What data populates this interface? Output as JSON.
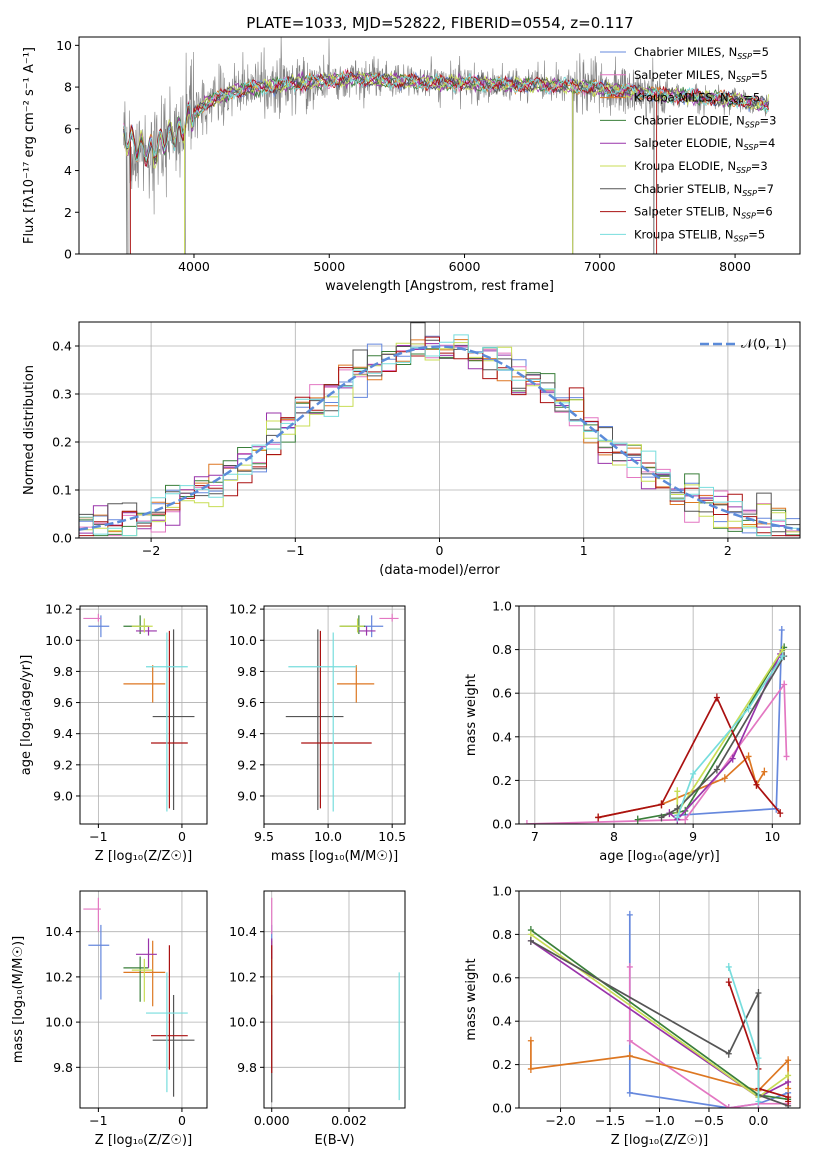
{
  "colors": {
    "chabrier_miles": "#6688dd",
    "salpeter_miles": "#e377c2",
    "kroupa_miles": "#dd7722",
    "chabrier_elodie": "#3a7f3a",
    "salpeter_elodie": "#9933aa",
    "kroupa_elodie": "#c8dd55",
    "chabrier_stelib": "#555555",
    "salpeter_stelib": "#aa1111",
    "kroupa_stelib": "#77dddd",
    "gauss": "#5b8bd9",
    "grid": "#b0b0b0",
    "data_spectrum": "#808080"
  },
  "chart_data": [
    {
      "type": "line",
      "title": "PLATE=1033, MJD=52822, FIBERID=0554, z=0.117",
      "xlabel": "wavelength [Angstrom, rest frame]",
      "ylabel": "Flux [fλ10⁻¹⁷ erg cm⁻² s⁻¹ A⁻¹]",
      "xlim": [
        3150,
        8480
      ],
      "ylim": [
        0,
        10.4
      ],
      "xticks": [
        "4000",
        "5000",
        "6000",
        "7000",
        "8000"
      ],
      "yticks": [
        "0",
        "2",
        "4",
        "6",
        "8",
        "10"
      ],
      "grid": false,
      "legend_position": "upper-right",
      "legend": [
        {
          "label": "Chabrier MILES, N",
          "sub": "SSP",
          "value": "=5"
        },
        {
          "label": "Salpeter MILES, N",
          "sub": "SSP",
          "value": "=5"
        },
        {
          "label": "Kroupa MILES, N",
          "sub": "SSP",
          "value": "=5"
        },
        {
          "label": "Chabrier ELODIE, N",
          "sub": "SSP",
          "value": "=3"
        },
        {
          "label": "Salpeter ELODIE, N",
          "sub": "SSP",
          "value": "=4"
        },
        {
          "label": "Kroupa ELODIE, N",
          "sub": "SSP",
          "value": "=3"
        },
        {
          "label": "Chabrier STELIB, N",
          "sub": "SSP",
          "value": "=7"
        },
        {
          "label": "Salpeter STELIB, N",
          "sub": "SSP",
          "value": "=6"
        },
        {
          "label": "Kroupa STELIB, N",
          "sub": "SSP",
          "value": "=5"
        }
      ],
      "continuum_points": [
        [
          3480,
          5.6
        ],
        [
          3600,
          5.1
        ],
        [
          3700,
          4.9
        ],
        [
          3800,
          5.6
        ],
        [
          3900,
          5.9
        ],
        [
          3960,
          6.5
        ],
        [
          4100,
          7.3
        ],
        [
          4300,
          7.8
        ],
        [
          4500,
          8.0
        ],
        [
          4800,
          8.2
        ],
        [
          5000,
          8.3
        ],
        [
          5200,
          8.4
        ],
        [
          5500,
          8.3
        ],
        [
          5800,
          8.2
        ],
        [
          6000,
          8.2
        ],
        [
          6300,
          8.1
        ],
        [
          6600,
          8.1
        ],
        [
          6900,
          8.0
        ],
        [
          7200,
          7.8
        ],
        [
          7500,
          7.6
        ],
        [
          7800,
          7.5
        ],
        [
          8000,
          7.4
        ],
        [
          8250,
          7.1
        ]
      ]
    },
    {
      "type": "line",
      "xlabel": "(data-model)/error",
      "ylabel": "Normed distribution",
      "xlim": [
        -2.5,
        2.5
      ],
      "ylim": [
        0,
        0.45
      ],
      "xticks": [
        "−2",
        "−1",
        "0",
        "1",
        "2"
      ],
      "yticks": [
        "0.0",
        "0.1",
        "0.2",
        "0.3",
        "0.4"
      ],
      "grid": true,
      "legend_position": "upper-right",
      "legend": [
        "𝒩(0, 1)"
      ]
    },
    {
      "type": "scatter",
      "xlabel": "Z [log₁₀(Z/Z☉)]",
      "ylabel": "age  [log₁₀(age/yr)]",
      "xlim": [
        -1.22,
        0.3
      ],
      "ylim": [
        8.82,
        10.22
      ],
      "xticks": [
        "−1",
        "0"
      ],
      "yticks": [
        "9.0",
        "9.2",
        "9.4",
        "9.6",
        "9.8",
        "10.0",
        "10.2"
      ],
      "grid": true
    },
    {
      "type": "scatter",
      "xlabel": "mass [log₁₀(M/M☉)]",
      "ylabel": "",
      "xlim": [
        9.5,
        10.6
      ],
      "ylim": [
        8.82,
        10.22
      ],
      "xticks": [
        "9.5",
        "10.0",
        "10.5"
      ],
      "yticks": [
        "9.0",
        "9.2",
        "9.4",
        "9.6",
        "9.8",
        "10.0",
        "10.2"
      ],
      "grid": true
    },
    {
      "type": "line",
      "xlabel": "age  [log₁₀(age/yr)]",
      "ylabel": "mass weight",
      "xlim": [
        6.8,
        10.35
      ],
      "ylim": [
        0,
        1.0
      ],
      "xticks": [
        "7",
        "8",
        "9",
        "10"
      ],
      "yticks": [
        "0.0",
        "0.2",
        "0.4",
        "0.6",
        "0.8",
        "1.0"
      ],
      "grid": true
    },
    {
      "type": "scatter",
      "xlabel": "Z [log₁₀(Z/Z☉)]",
      "ylabel": "mass [log₁₀(M/M☉)]",
      "xlim": [
        -1.22,
        0.3
      ],
      "ylim": [
        9.62,
        10.58
      ],
      "xticks": [
        "−1",
        "0"
      ],
      "yticks": [
        "9.8",
        "10.0",
        "10.2",
        "10.4"
      ],
      "grid": true
    },
    {
      "type": "scatter",
      "xlabel": "E(B-V)",
      "ylabel": "",
      "xlim": [
        -0.0002,
        0.00345
      ],
      "ylim": [
        9.62,
        10.58
      ],
      "xticks": [
        "0.000",
        "0.002"
      ],
      "yticks": [
        "9.8",
        "10.0",
        "10.2",
        "10.4"
      ],
      "grid": true
    },
    {
      "type": "line",
      "xlabel": "Z [log₁₀(Z/Z☉)]",
      "ylabel": "mass weight",
      "xlim": [
        -2.42,
        0.42
      ],
      "ylim": [
        0,
        1.0
      ],
      "xticks": [
        "−2.0",
        "−1.5",
        "−1.0",
        "−0.5",
        "0.0"
      ],
      "yticks": [
        "0.0",
        "0.2",
        "0.4",
        "0.6",
        "0.8",
        "1.0"
      ],
      "grid": true
    }
  ],
  "models": [
    {
      "key": "chabrier_miles",
      "Z": [
        -0.97,
        0.15,
        0.1
      ],
      "age": [
        10.09,
        0.07,
        0.07
      ],
      "mass": [
        10.34,
        0.24,
        0.09
      ],
      "mass_err": [
        10.34,
        0.24,
        0.09
      ],
      "ebv": 0.0,
      "w_age": [
        [
          10.05,
          0.07
        ],
        [
          8.8,
          0.04
        ],
        [
          10.12,
          0.89
        ]
      ],
      "w_Z": [
        [
          -1.3,
          0.89
        ],
        [
          -1.3,
          0.07
        ],
        [
          -0.3,
          0.0
        ],
        [
          0.0,
          0.02
        ],
        [
          0.3,
          0.07
        ]
      ]
    },
    {
      "key": "salpeter_miles",
      "Z": [
        -1.0,
        0.18,
        0.03
      ],
      "age": [
        10.14,
        0.02,
        0.03
      ],
      "mass": [
        10.5,
        0.1,
        0.05
      ],
      "ebv": 0.0,
      "w_age": [
        [
          6.9,
          0.0
        ],
        [
          8.9,
          0.02
        ],
        [
          10.15,
          0.64
        ],
        [
          10.18,
          0.31
        ]
      ],
      "w_Z": [
        [
          -1.3,
          0.65
        ],
        [
          -1.3,
          0.31
        ],
        [
          -0.3,
          0.0
        ],
        [
          0.0,
          0.02
        ],
        [
          0.3,
          0.02
        ]
      ]
    },
    {
      "key": "kroupa_miles",
      "Z": [
        -0.35,
        0.35,
        0.15
      ],
      "age": [
        9.72,
        0.12,
        0.12
      ],
      "mass": [
        10.22,
        0.15,
        0.14
      ],
      "ebv": 0.0,
      "w_age": [
        [
          7.8,
          0.03
        ],
        [
          8.6,
          0.09
        ],
        [
          9.4,
          0.21
        ],
        [
          9.7,
          0.31
        ],
        [
          9.8,
          0.18
        ],
        [
          9.9,
          0.24
        ]
      ],
      "w_Z": [
        [
          -2.3,
          0.31
        ],
        [
          -2.3,
          0.18
        ],
        [
          -1.3,
          0.24
        ],
        [
          0.0,
          0.08
        ],
        [
          0.3,
          0.22
        ],
        [
          0.3,
          0.09
        ]
      ]
    },
    {
      "key": "chabrier_elodie",
      "Z": [
        -0.5,
        0.2,
        0.1
      ],
      "age": [
        10.09,
        0.05,
        0.07
      ],
      "mass": [
        10.24,
        0.15,
        0.05
      ],
      "ebv": 0.0,
      "w_age": [
        [
          8.3,
          0.02
        ],
        [
          8.9,
          0.06
        ],
        [
          10.15,
          0.81
        ]
      ],
      "w_Z": [
        [
          -2.3,
          0.82
        ],
        [
          0.0,
          0.06
        ],
        [
          0.3,
          0.04
        ]
      ]
    },
    {
      "key": "salpeter_elodie",
      "Z": [
        -0.4,
        0.15,
        0.1
      ],
      "age": [
        10.06,
        0.03,
        0.03
      ],
      "mass": [
        10.3,
        0.06,
        0.07
      ],
      "ebv": 0.0,
      "w_age": [
        [
          8.7,
          0.05
        ],
        [
          8.8,
          0.02
        ],
        [
          9.5,
          0.3
        ],
        [
          10.1,
          0.78
        ]
      ],
      "w_Z": [
        [
          -2.3,
          0.77
        ],
        [
          0.0,
          0.05
        ],
        [
          0.3,
          0.12
        ]
      ]
    },
    {
      "key": "kroupa_elodie",
      "Z": [
        -0.45,
        0.15,
        0.1
      ],
      "age": [
        10.09,
        0.04,
        0.05
      ],
      "mass": [
        10.23,
        0.14,
        0.05
      ],
      "ebv": 0.0,
      "w_age": [
        [
          8.8,
          0.15
        ],
        [
          8.8,
          0.05
        ],
        [
          10.13,
          0.8
        ]
      ],
      "w_Z": [
        [
          -2.3,
          0.8
        ],
        [
          0.0,
          0.05
        ],
        [
          0.3,
          0.15
        ]
      ]
    },
    {
      "key": "chabrier_stelib",
      "Z": [
        -0.1,
        0.25,
        0.25
      ],
      "age": [
        9.51,
        0.6,
        0.56
      ],
      "mass": [
        9.92,
        0.25,
        0.2
      ],
      "ebv": 0.0,
      "w_age": [
        [
          8.6,
          0.03
        ],
        [
          8.8,
          0.07
        ],
        [
          9.3,
          0.25
        ],
        [
          10.15,
          0.77
        ]
      ],
      "w_Z": [
        [
          -2.3,
          0.77
        ],
        [
          -0.3,
          0.25
        ],
        [
          0.0,
          0.53
        ],
        [
          0.0,
          0.06
        ],
        [
          0.3,
          0.01
        ]
      ]
    },
    {
      "key": "salpeter_stelib",
      "Z": [
        -0.15,
        0.22,
        0.22
      ],
      "age": [
        9.34,
        0.42,
        0.72
      ],
      "mass": [
        9.94,
        0.15,
        0.4
      ],
      "ebv": 0.0,
      "w_age": [
        [
          7.8,
          0.03
        ],
        [
          8.6,
          0.09
        ],
        [
          9.3,
          0.58
        ],
        [
          9.8,
          0.18
        ],
        [
          10.1,
          0.05
        ]
      ],
      "w_Z": [
        [
          -0.3,
          0.58
        ],
        [
          0.0,
          0.18
        ],
        [
          0.0,
          0.09
        ],
        [
          0.3,
          0.05
        ],
        [
          0.3,
          0.03
        ]
      ]
    },
    {
      "key": "kroupa_stelib",
      "Z": [
        -0.18,
        0.25,
        0.25
      ],
      "age": [
        9.83,
        0.93,
        0.22
      ],
      "mass": [
        10.04,
        0.35,
        0.18
      ],
      "ebv": 0.0033,
      "w_age": [
        [
          8.8,
          0.03
        ],
        [
          9.0,
          0.23
        ],
        [
          9.7,
          0.53
        ],
        [
          10.13,
          0.77
        ]
      ],
      "w_Z": [
        [
          -0.3,
          0.65
        ],
        [
          0.0,
          0.23
        ],
        [
          0.0,
          0.03
        ]
      ]
    }
  ]
}
